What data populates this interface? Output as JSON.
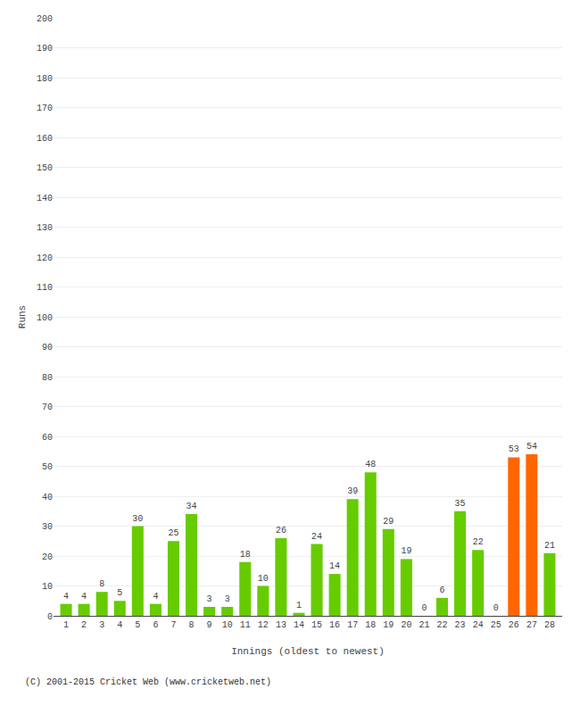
{
  "chart_data": {
    "type": "bar",
    "x": [
      1,
      2,
      3,
      4,
      5,
      6,
      7,
      8,
      9,
      10,
      11,
      12,
      13,
      14,
      15,
      16,
      17,
      18,
      19,
      20,
      21,
      22,
      23,
      24,
      25,
      26,
      27,
      28
    ],
    "values": [
      4,
      4,
      8,
      5,
      30,
      4,
      25,
      34,
      3,
      3,
      18,
      10,
      26,
      1,
      24,
      14,
      39,
      48,
      29,
      19,
      0,
      6,
      35,
      22,
      0,
      53,
      54,
      21
    ],
    "colors": [
      "#66cc00",
      "#66cc00",
      "#66cc00",
      "#66cc00",
      "#66cc00",
      "#66cc00",
      "#66cc00",
      "#66cc00",
      "#66cc00",
      "#66cc00",
      "#66cc00",
      "#66cc00",
      "#66cc00",
      "#66cc00",
      "#66cc00",
      "#66cc00",
      "#66cc00",
      "#66cc00",
      "#66cc00",
      "#66cc00",
      "#66cc00",
      "#66cc00",
      "#66cc00",
      "#66cc00",
      "#66cc00",
      "#ff6600",
      "#ff6600",
      "#66cc00"
    ],
    "xlabel": "Innings (oldest to newest)",
    "ylabel": "Runs",
    "xlim": [
      0.3,
      28.7
    ],
    "xticks": [
      1,
      2,
      3,
      4,
      5,
      6,
      7,
      8,
      9,
      10,
      11,
      12,
      13,
      14,
      15,
      16,
      17,
      18,
      19,
      20,
      21,
      22,
      23,
      24,
      25,
      26,
      27,
      28
    ],
    "ylim": [
      0,
      200
    ],
    "yticks": [
      0,
      10,
      20,
      30,
      40,
      50,
      60,
      70,
      80,
      90,
      100,
      110,
      120,
      130,
      140,
      150,
      160,
      170,
      180,
      190,
      200
    ],
    "grid": "y",
    "data_labels": true,
    "annotations": [
      "(C) 2001-2015 Cricket Web (www.cricketweb.net)"
    ]
  }
}
